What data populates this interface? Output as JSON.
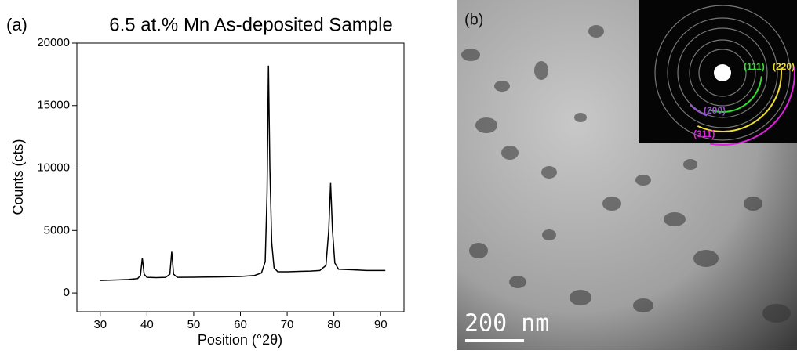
{
  "chart_data": {
    "type": "line",
    "panel_label": "(a)",
    "title": "6.5 at.% Mn As-deposited Sample",
    "x_label": "Position (°2θ)",
    "y_label": "Counts (cts)",
    "xlim": [
      25,
      95
    ],
    "xticks": [
      30,
      40,
      50,
      60,
      70,
      80,
      90
    ],
    "ylim": [
      -1500,
      20000
    ],
    "yticks": [
      0,
      5000,
      10000,
      15000,
      20000
    ],
    "x": [
      30,
      32,
      34,
      36,
      38,
      38.6,
      39,
      39.4,
      40,
      42,
      44,
      44.9,
      45.3,
      45.7,
      46.5,
      50,
      55,
      60,
      63,
      64.5,
      65.3,
      65.7,
      66,
      66.3,
      66.7,
      67.2,
      68,
      70,
      72,
      75,
      77,
      78.3,
      78.9,
      79.3,
      79.7,
      80.2,
      81,
      84,
      87,
      90,
      91
    ],
    "series": [
      {
        "color": "#000000",
        "values": [
          1000,
          1020,
          1050,
          1080,
          1150,
          1400,
          2800,
          1500,
          1250,
          1230,
          1250,
          1500,
          3300,
          1500,
          1250,
          1260,
          1280,
          1320,
          1400,
          1600,
          2500,
          8000,
          18200,
          10000,
          4000,
          2000,
          1700,
          1700,
          1720,
          1750,
          1800,
          2200,
          5000,
          8800,
          5000,
          2400,
          1900,
          1850,
          1800,
          1800,
          1800
        ]
      }
    ]
  },
  "image_panel": {
    "panel_label": "(b)",
    "scale_bar": "200 nm",
    "rings": [
      {
        "label": "(111)",
        "color": "#33dd33"
      },
      {
        "label": "(220)",
        "color": "#eedd33"
      },
      {
        "label": "(200)",
        "color": "#9955cc"
      },
      {
        "label": "(311)",
        "color": "#dd22dd"
      }
    ]
  }
}
